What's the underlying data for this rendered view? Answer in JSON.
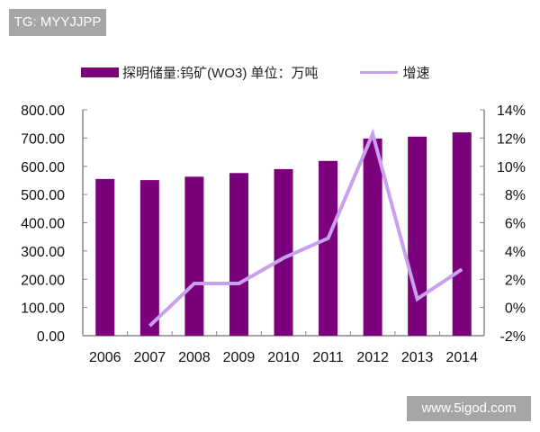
{
  "watermarks": {
    "top_left": "TG: MYYJJPP",
    "bottom_right": "www.5igod.com"
  },
  "chart_data": {
    "type": "bar+line",
    "categories": [
      "2006",
      "2007",
      "2008",
      "2009",
      "2010",
      "2011",
      "2012",
      "2013",
      "2014"
    ],
    "series": [
      {
        "name": "探明储量:钨矿(WO3) 单位：万吨",
        "type": "bar",
        "axis": "left",
        "color": "#7b007b",
        "values": [
          555,
          551,
          563,
          576,
          590,
          619,
          698,
          705,
          720
        ]
      },
      {
        "name": "增速",
        "type": "line",
        "axis": "right",
        "color": "#c8a0ee",
        "values": [
          null,
          -1.3,
          1.7,
          1.7,
          3.5,
          4.9,
          12.3,
          0.6,
          2.7
        ]
      }
    ],
    "left_axis": {
      "range": [
        0,
        800
      ],
      "ticks": [
        "0.00",
        "100.00",
        "200.00",
        "300.00",
        "400.00",
        "500.00",
        "600.00",
        "700.00",
        "800.00"
      ]
    },
    "right_axis": {
      "range": [
        -2,
        14
      ],
      "unit": "%",
      "ticks": [
        "-2%",
        "0%",
        "2%",
        "4%",
        "6%",
        "8%",
        "10%",
        "12%",
        "14%"
      ]
    },
    "grid": false,
    "legend": "top"
  }
}
